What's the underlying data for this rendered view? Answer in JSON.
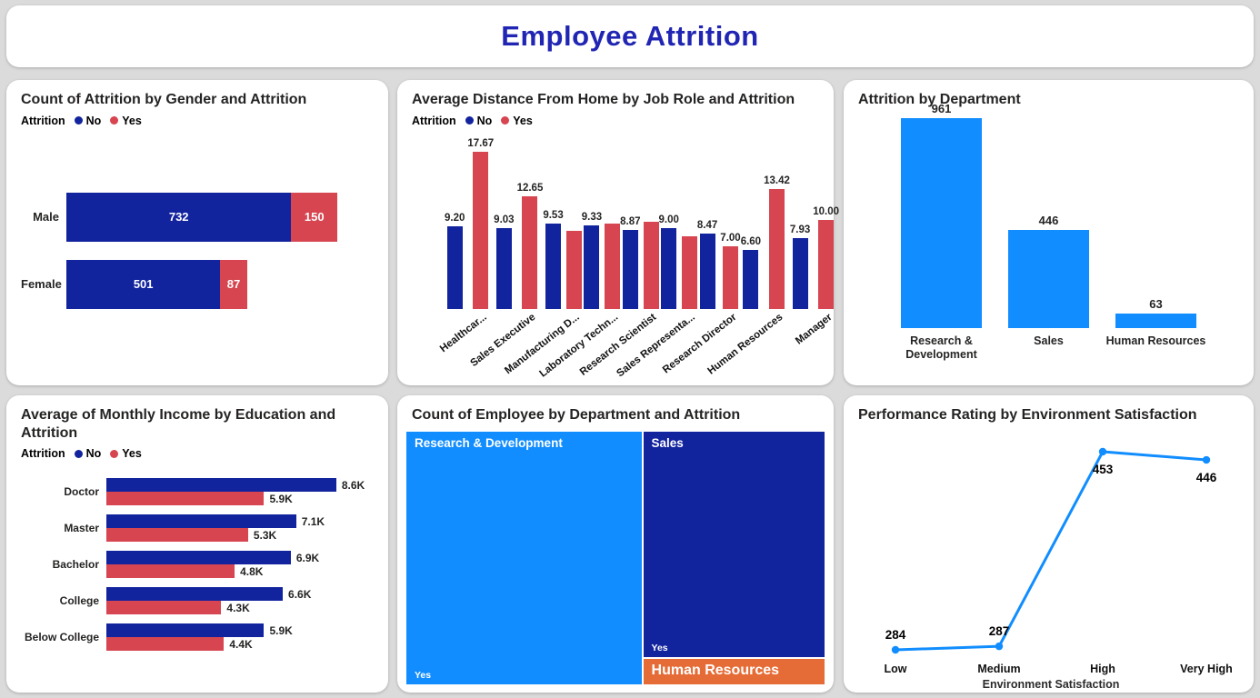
{
  "header": {
    "title": "Employee Attrition",
    "title_color": "#2026B3"
  },
  "legend": {
    "title": "Attrition",
    "items": [
      {
        "label": "No",
        "color": "#12239E"
      },
      {
        "label": "Yes",
        "color": "#D64550"
      }
    ]
  },
  "palette": {
    "attrition_no_blue": "#12239E",
    "attrition_yes_red": "#D64550",
    "light_blue": "#118DFF",
    "orange": "#E66C37",
    "card_background": "#FFFFFF",
    "page_background": "#DBDBDB"
  },
  "chart_data": [
    {
      "type": "bar",
      "title": "Count of Attrition by Gender and Attrition",
      "orientation": "horizontal",
      "stacked": true,
      "categories": [
        "Male",
        "Female"
      ],
      "series": [
        {
          "name": "No",
          "color": "#12239E",
          "values": [
            732,
            501
          ],
          "labels": [
            "732",
            "501"
          ]
        },
        {
          "name": "Yes",
          "color": "#D64550",
          "values": [
            150,
            87
          ],
          "labels": [
            "150",
            "87"
          ]
        }
      ],
      "xlim": [
        0,
        1000
      ],
      "legend_position": "top"
    },
    {
      "type": "bar",
      "title": "Average Distance From Home by Job Role and Attrition",
      "orientation": "vertical",
      "grouped": true,
      "categories": [
        "Healthcar...",
        "Sales Executive",
        "Manufacturing D...",
        "Laboratory Techn...",
        "Research Scientist",
        "Sales Representa...",
        "Research Director",
        "Human Resources",
        "Manager"
      ],
      "series": [
        {
          "name": "No",
          "color": "#12239E",
          "values": [
            9.2,
            9.03,
            9.53,
            9.33,
            8.87,
            9.0,
            8.47,
            6.6,
            7.93
          ],
          "labels": [
            "9.20",
            "9.03",
            "9.53",
            "9.33",
            "8.87",
            "9.00",
            "8.47",
            "6.60",
            "7.93"
          ]
        },
        {
          "name": "Yes",
          "color": "#D64550",
          "values": [
            17.67,
            12.65,
            8.7,
            9.6,
            9.75,
            8.15,
            7.0,
            13.42,
            10.0
          ],
          "labels": [
            "17.67",
            "12.65",
            "",
            "",
            "",
            "",
            "7.00",
            "13.42",
            "10.00"
          ]
        }
      ],
      "ylim": [
        0,
        19
      ],
      "legend_position": "top",
      "x_labels_rotated": true
    },
    {
      "type": "bar",
      "title": "Attrition by Department",
      "orientation": "vertical",
      "categories": [
        "Research & Development",
        "Sales",
        "Human Resources"
      ],
      "values": [
        961,
        446,
        63
      ],
      "labels": [
        "961",
        "446",
        "63"
      ],
      "color": "#118DFF",
      "ylim": [
        0,
        1000
      ]
    },
    {
      "type": "bar",
      "title": "Average of Monthly Income by Education and Attrition",
      "orientation": "horizontal",
      "grouped": true,
      "categories": [
        "Doctor",
        "Master",
        "Bachelor",
        "College",
        "Below College"
      ],
      "series": [
        {
          "name": "No",
          "color": "#12239E",
          "values": [
            8600,
            7100,
            6900,
            6600,
            5900
          ],
          "labels": [
            "8.6K",
            "7.1K",
            "6.9K",
            "6.6K",
            "5.9K"
          ]
        },
        {
          "name": "Yes",
          "color": "#D64550",
          "values": [
            5900,
            5300,
            4800,
            4300,
            4400
          ],
          "labels": [
            "5.9K",
            "5.3K",
            "4.8K",
            "4.3K",
            "4.4K"
          ]
        }
      ],
      "xlim": [
        0,
        10000
      ],
      "legend_position": "top"
    },
    {
      "type": "treemap",
      "title": "Count of Employee by Department and Attrition",
      "tiles": [
        {
          "label": "Research & Development",
          "sub_label": "Yes",
          "color": "#118DFF",
          "x": 0,
          "y": 0,
          "w": 56.2,
          "h": 100
        },
        {
          "label": "Sales",
          "sub_label": "Yes",
          "color": "#12239E",
          "x": 56.2,
          "y": 0,
          "w": 43.8,
          "h": 89.4
        },
        {
          "label": "Human Resources",
          "sub_label": "",
          "color": "#E66C37",
          "x": 56.2,
          "y": 89.4,
          "w": 43.8,
          "h": 10.6
        }
      ]
    },
    {
      "type": "line",
      "title": "Performance Rating by Environment Satisfaction",
      "color": "#118DFF",
      "categories": [
        "Low",
        "Medium",
        "High",
        "Very High"
      ],
      "values": [
        284,
        287,
        453,
        446
      ],
      "labels": [
        "284",
        "287",
        "453",
        "446"
      ],
      "label_side": [
        "above",
        "above",
        "below",
        "below"
      ],
      "xlabel": "Environment Satisfaction",
      "ylim": [
        250,
        470
      ],
      "markers": true
    }
  ]
}
